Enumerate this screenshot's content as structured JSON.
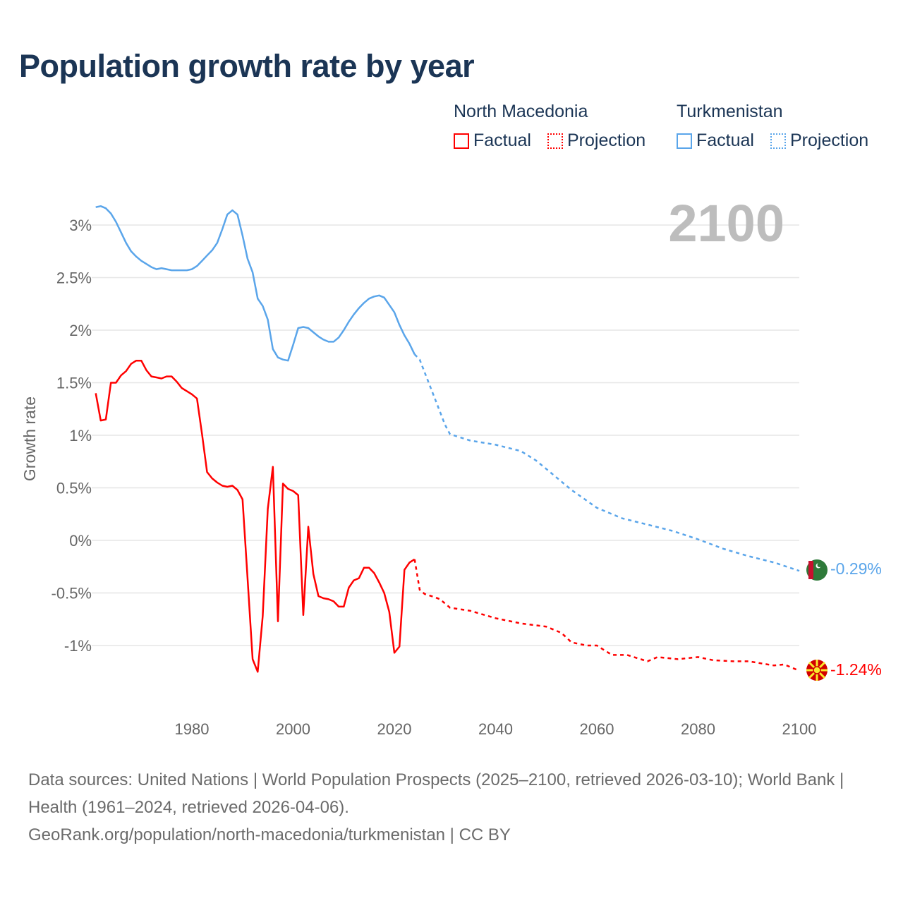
{
  "title": "Population growth rate by year",
  "legend": {
    "groups": [
      {
        "name": "North Macedonia",
        "color": "#ff0000",
        "factual": "Factual",
        "projection": "Projection"
      },
      {
        "name": "Turkmenistan",
        "color": "#5aa5ea",
        "factual": "Factual",
        "projection": "Projection"
      }
    ]
  },
  "year_label": "2100",
  "footer": {
    "sources": "Data sources: United Nations | World Population Prospects (2025–2100, retrieved 2026-03-10); World Bank | Health (1961–2024, retrieved 2026-04-06).",
    "link": "GeoRank.org/population/north-macedonia/turkmenistan | CC BY"
  },
  "chart_data": {
    "type": "line",
    "title": "Population growth rate by year",
    "xlabel": "",
    "ylabel": "Growth rate",
    "xlim": [
      1961,
      2100
    ],
    "ylim": [
      -1.5,
      3.3
    ],
    "x_ticks": [
      "1980",
      "2000",
      "2020",
      "2040",
      "2060",
      "2080",
      "2100"
    ],
    "y_ticks": [
      {
        "v": 3,
        "label": "3%"
      },
      {
        "v": 2.5,
        "label": "2.5%"
      },
      {
        "v": 2,
        "label": "2%"
      },
      {
        "v": 1.5,
        "label": "1.5%"
      },
      {
        "v": 1,
        "label": "1%"
      },
      {
        "v": 0.5,
        "label": "0.5%"
      },
      {
        "v": 0,
        "label": "0%"
      },
      {
        "v": -0.5,
        "label": "-0.5%"
      },
      {
        "v": -1,
        "label": "-1%"
      }
    ],
    "grid": true,
    "series": [
      {
        "name": "North Macedonia",
        "color": "#ff0000",
        "end_label": "-1.24%",
        "factual_start_year": 1961,
        "factual": [
          1.4,
          1.14,
          1.15,
          1.5,
          1.5,
          1.57,
          1.61,
          1.68,
          1.71,
          1.71,
          1.62,
          1.56,
          1.55,
          1.54,
          1.56,
          1.56,
          1.51,
          1.45,
          1.42,
          1.39,
          1.35,
          1.01,
          0.65,
          0.59,
          0.55,
          0.52,
          0.51,
          0.52,
          0.48,
          0.39,
          -0.36,
          -1.13,
          -1.25,
          -0.72,
          0.3,
          0.7,
          -0.77,
          0.54,
          0.49,
          0.47,
          0.43,
          -0.71,
          0.13,
          -0.32,
          -0.53,
          -0.55,
          -0.56,
          -0.58,
          -0.63,
          -0.63,
          -0.45,
          -0.38,
          -0.36,
          -0.26,
          -0.26,
          -0.31,
          -0.4,
          -0.5,
          -0.68,
          -1.07,
          -1.01,
          -0.28,
          -0.21,
          -0.18
        ],
        "projection": [
          [
            2024,
            -0.18
          ],
          [
            2025,
            -0.47
          ],
          [
            2026,
            -0.51
          ],
          [
            2028,
            -0.54
          ],
          [
            2029,
            -0.56
          ],
          [
            2031,
            -0.64
          ],
          [
            2035,
            -0.67
          ],
          [
            2040,
            -0.74
          ],
          [
            2045,
            -0.79
          ],
          [
            2050,
            -0.82
          ],
          [
            2053,
            -0.88
          ],
          [
            2055,
            -0.97
          ],
          [
            2058,
            -1.0
          ],
          [
            2060,
            -1.0
          ],
          [
            2063,
            -1.09
          ],
          [
            2066,
            -1.09
          ],
          [
            2070,
            -1.15
          ],
          [
            2072,
            -1.11
          ],
          [
            2076,
            -1.13
          ],
          [
            2080,
            -1.11
          ],
          [
            2083,
            -1.14
          ],
          [
            2087,
            -1.15
          ],
          [
            2090,
            -1.15
          ],
          [
            2095,
            -1.19
          ],
          [
            2097,
            -1.18
          ],
          [
            2100,
            -1.24
          ]
        ]
      },
      {
        "name": "Turkmenistan",
        "color": "#5aa5ea",
        "end_label": "-0.29%",
        "factual_start_year": 1961,
        "factual": [
          3.17,
          3.18,
          3.16,
          3.11,
          3.03,
          2.93,
          2.83,
          2.75,
          2.7,
          2.66,
          2.63,
          2.6,
          2.58,
          2.59,
          2.58,
          2.57,
          2.57,
          2.57,
          2.57,
          2.58,
          2.61,
          2.66,
          2.71,
          2.76,
          2.83,
          2.96,
          3.1,
          3.14,
          3.1,
          2.9,
          2.68,
          2.55,
          2.3,
          2.23,
          2.1,
          1.82,
          1.74,
          1.72,
          1.71,
          1.86,
          2.02,
          2.03,
          2.02,
          1.98,
          1.94,
          1.91,
          1.89,
          1.89,
          1.93,
          2.0,
          2.08,
          2.15,
          2.21,
          2.26,
          2.3,
          2.32,
          2.33,
          2.31,
          2.24,
          2.17,
          2.05,
          1.95,
          1.87,
          1.77
        ],
        "projection": [
          [
            2024,
            1.77
          ],
          [
            2025,
            1.72
          ],
          [
            2028,
            1.35
          ],
          [
            2030,
            1.1
          ],
          [
            2031,
            1.01
          ],
          [
            2035,
            0.95
          ],
          [
            2040,
            0.91
          ],
          [
            2045,
            0.85
          ],
          [
            2048,
            0.76
          ],
          [
            2050,
            0.68
          ],
          [
            2055,
            0.48
          ],
          [
            2060,
            0.31
          ],
          [
            2065,
            0.21
          ],
          [
            2070,
            0.15
          ],
          [
            2075,
            0.09
          ],
          [
            2080,
            0.01
          ],
          [
            2085,
            -0.08
          ],
          [
            2090,
            -0.15
          ],
          [
            2095,
            -0.21
          ],
          [
            2100,
            -0.29
          ]
        ]
      }
    ]
  }
}
